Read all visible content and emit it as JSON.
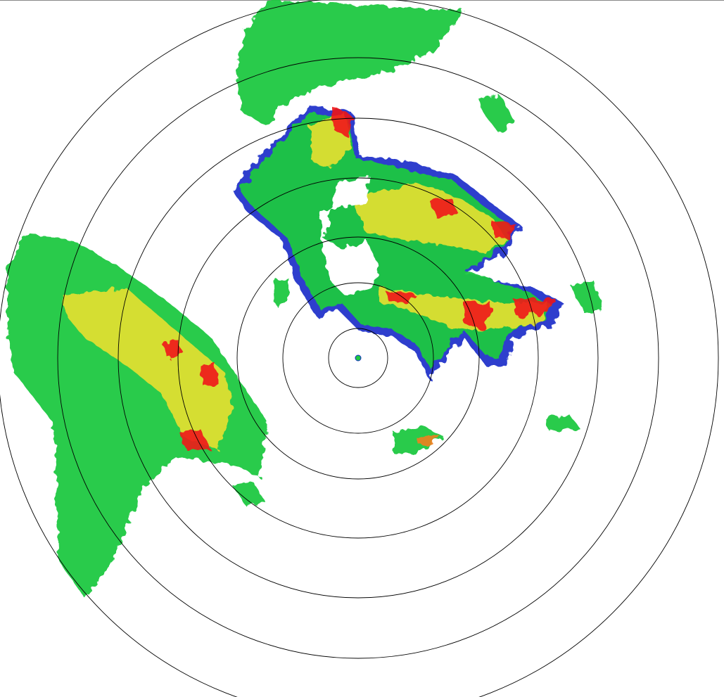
{
  "radar": {
    "range_rings": 7,
    "colors": {
      "ring": "#000000",
      "weak": "#1428c8",
      "light": "#20c840",
      "light_alt": "#3ce87a",
      "moderate": "#e8e030",
      "heavy": "#f08020",
      "intense": "#f01818"
    }
  }
}
